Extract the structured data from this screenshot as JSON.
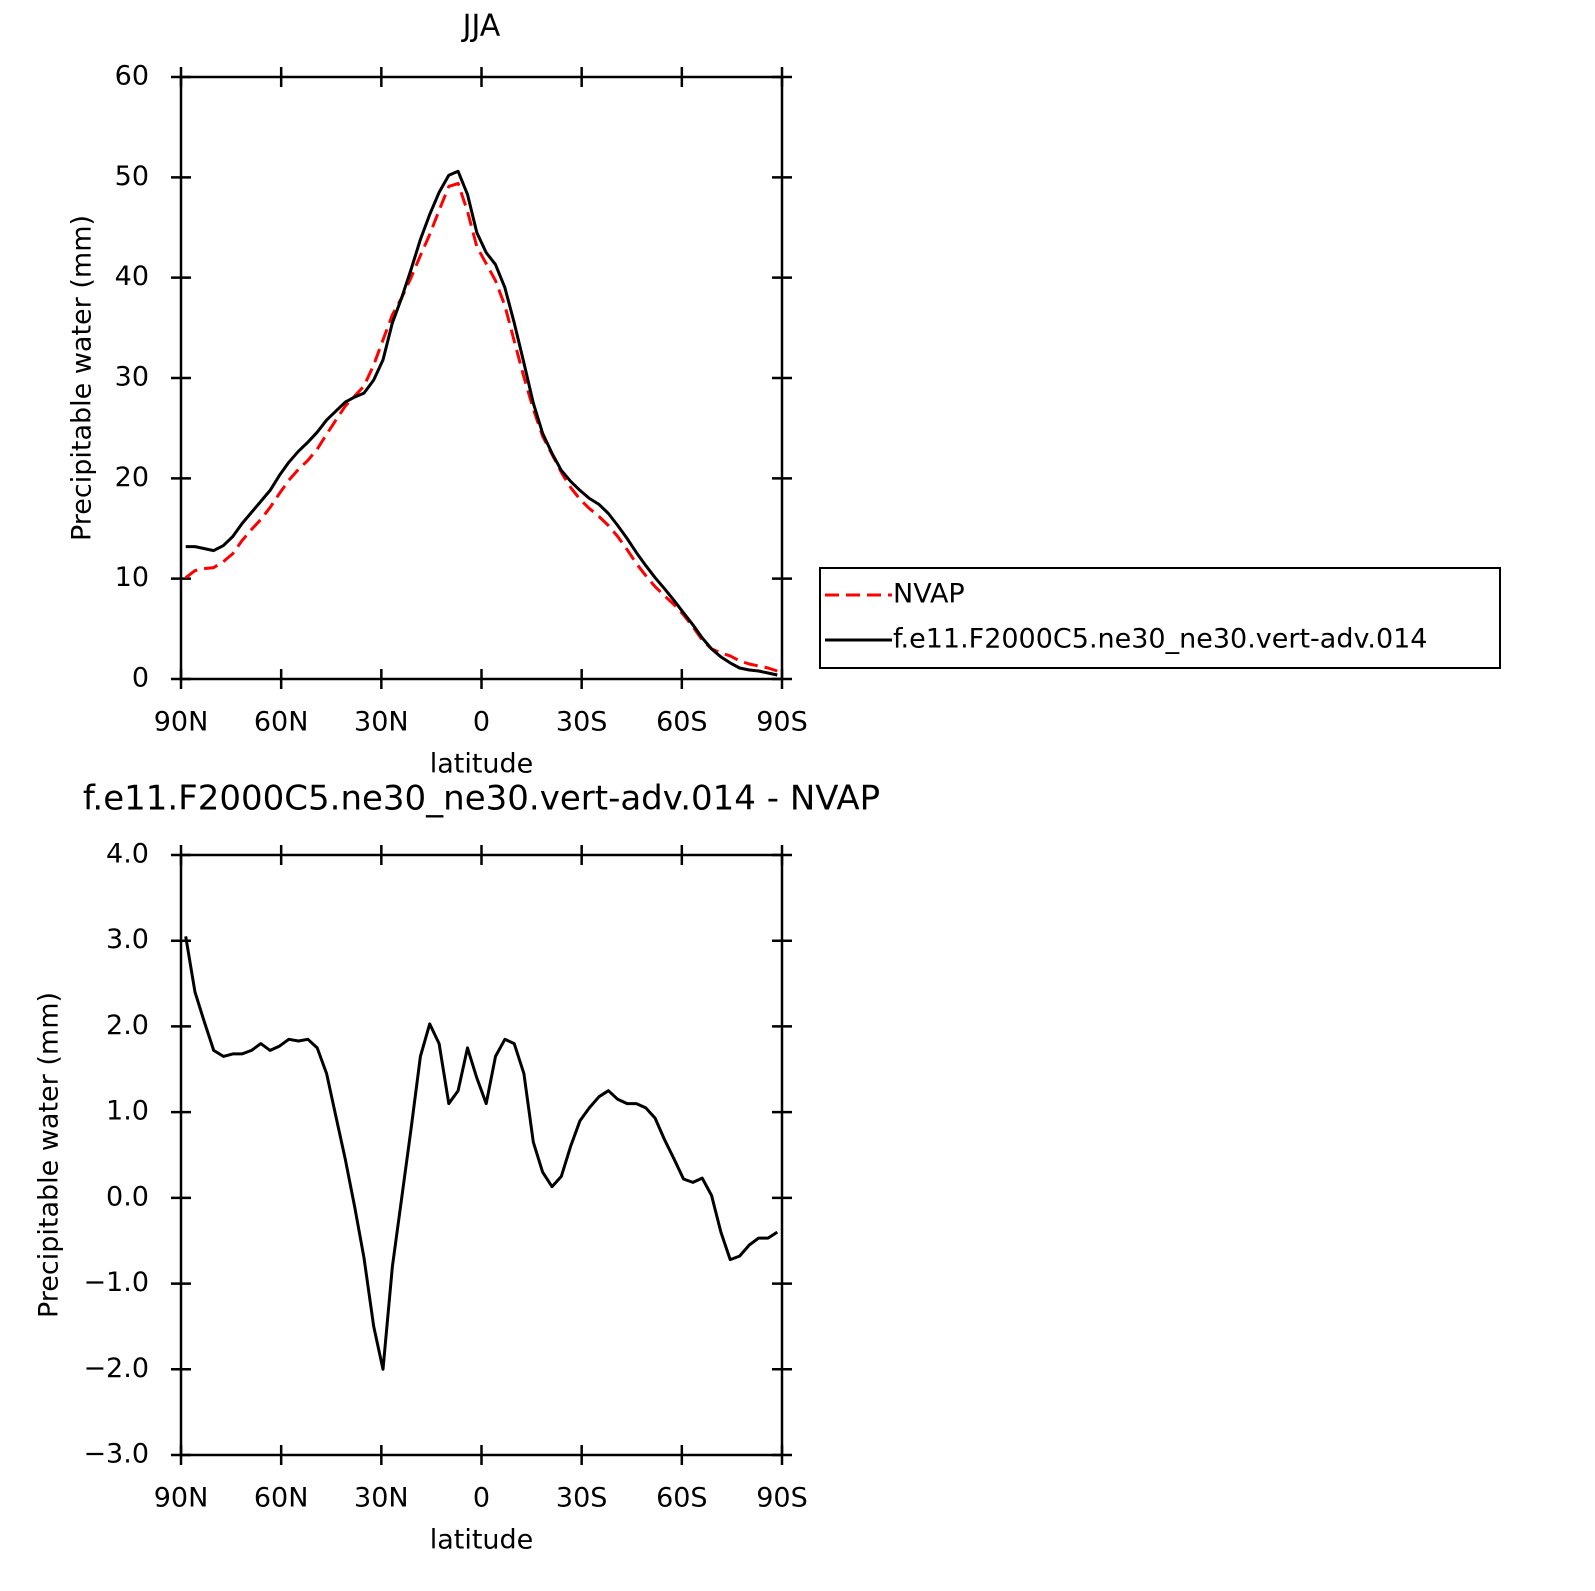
{
  "chart_data": [
    {
      "type": "line",
      "title": "JJA",
      "xlabel": "latitude",
      "ylabel": "Precipitable water (mm)",
      "x": [
        88.6,
        85.8,
        83.0,
        80.2,
        77.3,
        74.5,
        71.7,
        68.9,
        66.1,
        63.3,
        60.5,
        57.7,
        54.8,
        52.0,
        49.2,
        46.4,
        43.6,
        40.8,
        38.0,
        35.2,
        32.3,
        29.5,
        26.7,
        23.9,
        21.1,
        18.3,
        15.5,
        12.7,
        9.8,
        7.0,
        4.2,
        1.4,
        -1.4,
        -4.2,
        -7.0,
        -9.8,
        -12.7,
        -15.5,
        -18.3,
        -21.1,
        -23.9,
        -26.7,
        -29.5,
        -32.3,
        -35.2,
        -38.0,
        -40.8,
        -43.6,
        -46.4,
        -49.2,
        -52.0,
        -54.8,
        -57.7,
        -60.5,
        -63.3,
        -66.1,
        -68.9,
        -71.7,
        -74.5,
        -77.3,
        -80.2,
        -83.0,
        -85.8,
        -88.6
      ],
      "series": [
        {
          "name": "NVAP",
          "color": "#ff0000",
          "dash": "dashed",
          "values": [
            10.1,
            10.8,
            11.0,
            11.1,
            11.7,
            12.5,
            13.8,
            14.9,
            15.9,
            17.1,
            18.5,
            19.8,
            20.9,
            21.8,
            22.9,
            24.4,
            25.8,
            27.2,
            28.2,
            29.2,
            31.3,
            33.8,
            36.3,
            38.0,
            40.0,
            42.2,
            44.3,
            46.7,
            49.1,
            49.4,
            46.6,
            43.1,
            41.4,
            39.7,
            37.2,
            33.7,
            30.1,
            26.9,
            24.2,
            22.4,
            20.6,
            19.1,
            17.9,
            17.0,
            16.2,
            15.3,
            14.2,
            12.9,
            11.5,
            10.3,
            9.2,
            8.3,
            7.4,
            6.4,
            5.2,
            3.9,
            3.0,
            2.6,
            2.3,
            1.8,
            1.5,
            1.3,
            1.1,
            0.8
          ]
        },
        {
          "name": "f.e11.F2000C5.ne30_ne30.vert-adv.014",
          "color": "#000000",
          "dash": "solid",
          "values": [
            13.2,
            13.2,
            13.0,
            12.8,
            13.3,
            14.2,
            15.5,
            16.6,
            17.7,
            18.8,
            20.3,
            21.6,
            22.7,
            23.6,
            24.6,
            25.8,
            26.7,
            27.6,
            28.1,
            28.5,
            29.8,
            31.8,
            35.5,
            38.0,
            40.8,
            43.8,
            46.3,
            48.5,
            50.2,
            50.6,
            48.3,
            44.5,
            42.5,
            41.3,
            39.0,
            35.5,
            31.5,
            27.5,
            24.5,
            22.5,
            20.8,
            19.7,
            18.8,
            18.0,
            17.4,
            16.5,
            15.3,
            14.0,
            12.6,
            11.3,
            10.1,
            9.0,
            7.8,
            6.6,
            5.4,
            4.1,
            3.0,
            2.2,
            1.6,
            1.1,
            0.9,
            0.8,
            0.6,
            0.4
          ]
        }
      ],
      "xlim": [
        90,
        -90
      ],
      "xticks": [
        {
          "value": 90,
          "label": "90N"
        },
        {
          "value": 60,
          "label": "60N"
        },
        {
          "value": 30,
          "label": "30N"
        },
        0,
        {
          "value": -30,
          "label": "30S"
        },
        {
          "value": -60,
          "label": "60S"
        },
        {
          "value": -90,
          "label": "90S"
        }
      ],
      "ylim": [
        0,
        60
      ],
      "yticks": [
        0,
        10,
        20,
        30,
        40,
        50,
        60
      ],
      "legend": "right"
    },
    {
      "type": "line",
      "title": "f.e11.F2000C5.ne30_ne30.vert-adv.014 - NVAP",
      "xlabel": "latitude",
      "ylabel": "Precipitable water (mm)",
      "x": [
        88.6,
        85.8,
        83.0,
        80.2,
        77.3,
        74.5,
        71.7,
        68.9,
        66.1,
        63.3,
        60.5,
        57.7,
        54.8,
        52.0,
        49.2,
        46.4,
        43.6,
        40.8,
        38.0,
        35.2,
        32.3,
        29.5,
        26.7,
        23.9,
        21.1,
        18.3,
        15.5,
        12.7,
        9.8,
        7.0,
        4.2,
        1.4,
        -1.4,
        -4.2,
        -7.0,
        -9.8,
        -12.7,
        -15.5,
        -18.3,
        -21.1,
        -23.9,
        -26.7,
        -29.5,
        -32.3,
        -35.2,
        -38.0,
        -40.8,
        -43.6,
        -46.4,
        -49.2,
        -52.0,
        -54.8,
        -57.7,
        -60.5,
        -63.3,
        -66.1,
        -68.9,
        -71.7,
        -74.5,
        -77.3,
        -80.2,
        -83.0,
        -85.8,
        -88.6
      ],
      "values": [
        3.05,
        2.4,
        2.05,
        1.72,
        1.65,
        1.68,
        1.68,
        1.72,
        1.8,
        1.72,
        1.77,
        1.85,
        1.83,
        1.85,
        1.75,
        1.45,
        0.95,
        0.45,
        -0.1,
        -0.7,
        -1.5,
        -2.0,
        -0.8,
        0.0,
        0.8,
        1.65,
        2.03,
        1.8,
        1.1,
        1.25,
        1.75,
        1.4,
        1.1,
        1.65,
        1.85,
        1.8,
        1.45,
        0.65,
        0.3,
        0.13,
        0.25,
        0.6,
        0.9,
        1.05,
        1.18,
        1.25,
        1.15,
        1.1,
        1.1,
        1.05,
        0.93,
        0.68,
        0.45,
        0.22,
        0.18,
        0.23,
        0.03,
        -0.4,
        -0.72,
        -0.68,
        -0.55,
        -0.47,
        -0.47,
        -0.4
      ],
      "color": "#000000",
      "xlim": [
        90,
        -90
      ],
      "xticks": [
        {
          "value": 90,
          "label": "90N"
        },
        {
          "value": 60,
          "label": "60N"
        },
        {
          "value": 30,
          "label": "30N"
        },
        0,
        {
          "value": -30,
          "label": "30S"
        },
        {
          "value": -60,
          "label": "60S"
        },
        {
          "value": -90,
          "label": "90S"
        }
      ],
      "ylim": [
        -3,
        4
      ],
      "yticks": [
        {
          "value": -3,
          "label": "−3.0"
        },
        {
          "value": -2,
          "label": "−2.0"
        },
        {
          "value": -1,
          "label": "−1.0"
        },
        {
          "value": 0,
          "label": "0.0"
        },
        {
          "value": 1,
          "label": "1.0"
        },
        {
          "value": 2,
          "label": "2.0"
        },
        {
          "value": 3,
          "label": "3.0"
        },
        {
          "value": 4,
          "label": "4.0"
        }
      ]
    }
  ]
}
